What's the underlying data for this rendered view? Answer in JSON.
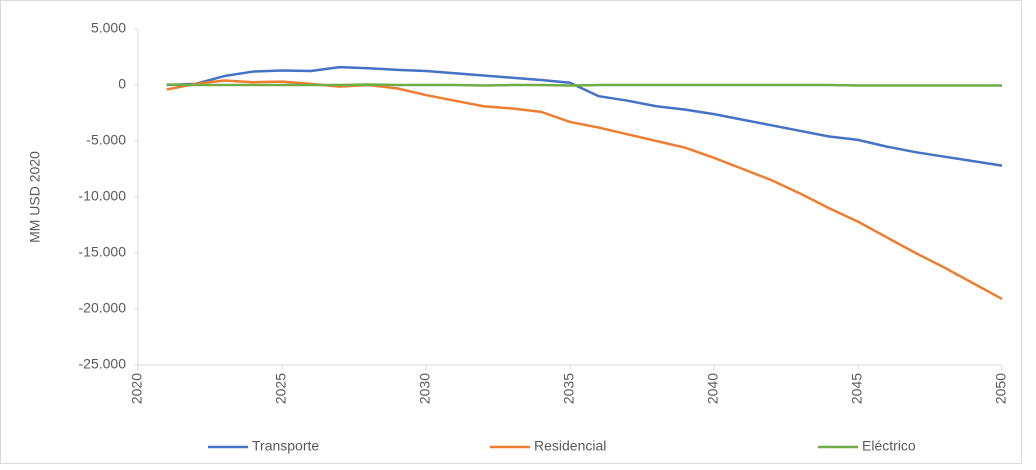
{
  "chart_data": {
    "type": "line",
    "y_label": "MM USD 2020",
    "x": [
      2021,
      2022,
      2023,
      2024,
      2025,
      2026,
      2027,
      2028,
      2029,
      2030,
      2031,
      2032,
      2033,
      2034,
      2035,
      2036,
      2037,
      2038,
      2039,
      2040,
      2041,
      2042,
      2043,
      2044,
      2045,
      2046,
      2047,
      2048,
      2049,
      2050
    ],
    "series": [
      {
        "name": "Transporte",
        "color": "#4472c4",
        "values": [
          0,
          100,
          800,
          1200,
          1300,
          1250,
          1600,
          1500,
          1350,
          1250,
          1050,
          850,
          650,
          450,
          200,
          -1000,
          -1400,
          -1900,
          -2200,
          -2600,
          -3100,
          -3600,
          -4100,
          -4600,
          -4900,
          -5500,
          -6000,
          -6400,
          -6800,
          -7200
        ]
      },
      {
        "name": "Residencial",
        "color": "#ed7d31",
        "values": [
          -400,
          100,
          400,
          250,
          300,
          100,
          -150,
          0,
          -300,
          -900,
          -1400,
          -1900,
          -2100,
          -2400,
          -3300,
          -3800,
          -4400,
          -5000,
          -5600,
          -6500,
          -7500,
          -8500,
          -9700,
          -11000,
          -12200,
          -13600,
          -15000,
          -16300,
          -17700,
          -19100
        ]
      },
      {
        "name": "Eléctrico",
        "color": "#70ad47",
        "values": [
          50,
          0,
          0,
          0,
          0,
          0,
          0,
          50,
          0,
          0,
          0,
          -50,
          0,
          0,
          -50,
          0,
          0,
          0,
          0,
          0,
          0,
          0,
          0,
          0,
          -50,
          -50,
          -50,
          -50,
          -50,
          -50
        ]
      }
    ],
    "xlim": [
      2020,
      2050
    ],
    "xticks": [
      2020,
      2025,
      2030,
      2035,
      2040,
      2045,
      2050
    ],
    "ylim": [
      -25000,
      5000
    ],
    "yticks": [
      {
        "value": 5000,
        "label": "5.000"
      },
      0,
      {
        "value": -5000,
        "label": "-5.000"
      },
      {
        "value": -10000,
        "label": "-10.000"
      },
      {
        "value": -15000,
        "label": "-15.000"
      },
      {
        "value": -20000,
        "label": "-20.000"
      },
      {
        "value": -25000,
        "label": "-25.000"
      }
    ],
    "grid": false,
    "legend": "bottom"
  }
}
